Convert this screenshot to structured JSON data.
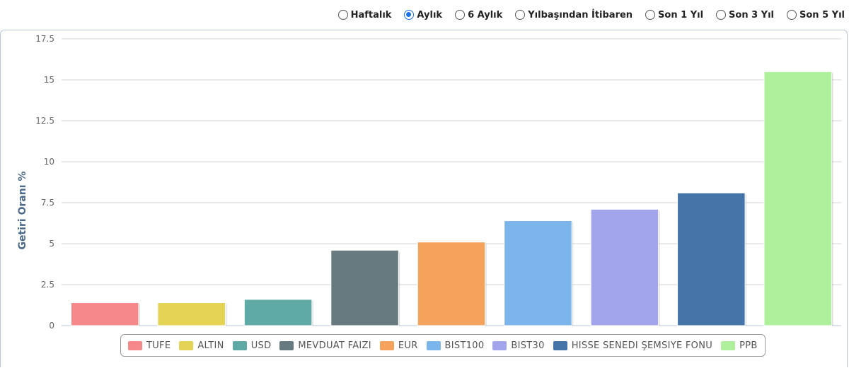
{
  "period_options": [
    {
      "label": "Haftalık",
      "checked": false
    },
    {
      "label": "Aylık",
      "checked": true
    },
    {
      "label": "6 Aylık",
      "checked": false
    },
    {
      "label": "Yılbaşından İtibaren",
      "checked": false
    },
    {
      "label": "Son 1 Yıl",
      "checked": false
    },
    {
      "label": "Son 3 Yıl",
      "checked": false
    },
    {
      "label": "Son 5 Yıl",
      "checked": false
    }
  ],
  "chart_data": {
    "type": "bar",
    "title": "",
    "xlabel": "",
    "ylabel": "Getiri Oranı %",
    "ylim": [
      0,
      17.5
    ],
    "yticks": [
      0,
      2.5,
      5,
      7.5,
      10,
      12.5,
      15,
      17.5
    ],
    "ytick_labels": [
      "0",
      "2.5",
      "5",
      "7.5",
      "10",
      "12.5",
      "15",
      "17.5"
    ],
    "grid": true,
    "legend_position": "bottom-center",
    "categories": [
      "TUFE",
      "ALTIN",
      "USD",
      "MEVDUAT FAIZI",
      "EUR",
      "BIST100",
      "BIST30",
      "HISSE SENEDI ŞEMSIYE FONU",
      "PPB"
    ],
    "values": [
      1.4,
      1.4,
      1.6,
      4.6,
      5.1,
      6.4,
      7.1,
      8.1,
      15.5
    ],
    "colors": [
      "#f7888a",
      "#e4d354",
      "#5fa9a6",
      "#667a80",
      "#f5a25d",
      "#7cb5ec",
      "#a3a5ec",
      "#4474a8",
      "#aef09c"
    ]
  }
}
